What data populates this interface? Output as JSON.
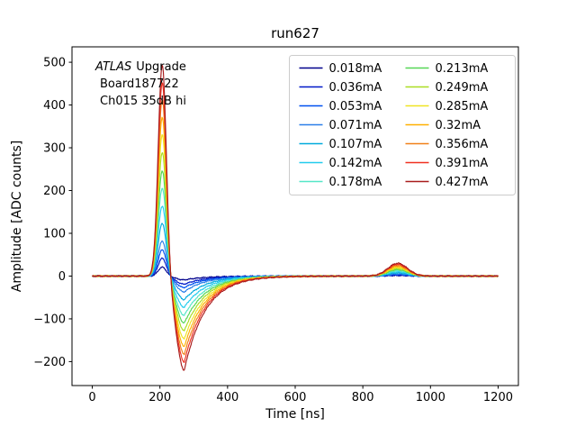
{
  "annotation": {
    "line1_italic": "ATLAS",
    "line1_rest": "Upgrade",
    "line2": "Board187722",
    "line3": "Ch015 35dB hi"
  },
  "chart_data": {
    "type": "line",
    "title": "run627",
    "xlabel": "Time [ns]",
    "ylabel": "Amplitude [ADC counts]",
    "xlim": [
      -60,
      1260
    ],
    "ylim": [
      -256,
      536
    ],
    "xticks": [
      0,
      200,
      400,
      600,
      800,
      1000,
      1200
    ],
    "yticks": [
      -200,
      -100,
      0,
      100,
      200,
      300,
      400,
      500
    ],
    "grid": false,
    "legend_position": "upper right",
    "legend_ncol": 2,
    "waveform_model": {
      "baseline": 0,
      "peak_center_ns": 207,
      "peak_sigma_ns": 12,
      "undershoot_center_ns": 272,
      "undershoot_sigma_ns": 24,
      "undershoot_tau_ns": 62,
      "bump_center_ns": 903,
      "bump_sigma_ns": 29,
      "time_start_ns": 0,
      "time_end_ns": 1200
    },
    "series": [
      {
        "name": "0.018mA",
        "current_mA": 0.018,
        "color": "#00008b",
        "peak": 21,
        "undershoot": -9,
        "bump": 1.3
      },
      {
        "name": "0.036mA",
        "current_mA": 0.036,
        "color": "#0018c8",
        "peak": 42,
        "undershoot": -19,
        "bump": 2.5
      },
      {
        "name": "0.053mA",
        "current_mA": 0.053,
        "color": "#0050f0",
        "peak": 62,
        "undershoot": -27,
        "bump": 3.7
      },
      {
        "name": "0.071mA",
        "current_mA": 0.071,
        "color": "#2a7fe8",
        "peak": 83,
        "undershoot": -37,
        "bump": 5.0
      },
      {
        "name": "0.107mA",
        "current_mA": 0.107,
        "color": "#00aadc",
        "peak": 125,
        "undershoot": -55,
        "bump": 7.5
      },
      {
        "name": "0.142mA",
        "current_mA": 0.142,
        "color": "#22ccee",
        "peak": 166,
        "undershoot": -73,
        "bump": 10.0
      },
      {
        "name": "0.178mA",
        "current_mA": 0.178,
        "color": "#55e6c8",
        "peak": 208,
        "undershoot": -92,
        "bump": 12.5
      },
      {
        "name": "0.213mA",
        "current_mA": 0.213,
        "color": "#55d655",
        "peak": 249,
        "undershoot": -110,
        "bump": 15.0
      },
      {
        "name": "0.249mA",
        "current_mA": 0.249,
        "color": "#aadd22",
        "peak": 292,
        "undershoot": -128,
        "bump": 17.5
      },
      {
        "name": "0.285mA",
        "current_mA": 0.285,
        "color": "#f0e422",
        "peak": 334,
        "undershoot": -147,
        "bump": 20.0
      },
      {
        "name": "0.32mA",
        "current_mA": 0.32,
        "color": "#ffb000",
        "peak": 375,
        "undershoot": -165,
        "bump": 22.5
      },
      {
        "name": "0.356mA",
        "current_mA": 0.356,
        "color": "#f08018",
        "peak": 417,
        "undershoot": -183,
        "bump": 25.0
      },
      {
        "name": "0.391mA",
        "current_mA": 0.391,
        "color": "#f03020",
        "peak": 458,
        "undershoot": -201,
        "bump": 27.5
      },
      {
        "name": "0.427mA",
        "current_mA": 0.427,
        "color": "#a81c1c",
        "peak": 500,
        "undershoot": -220,
        "bump": 30.0
      }
    ]
  }
}
